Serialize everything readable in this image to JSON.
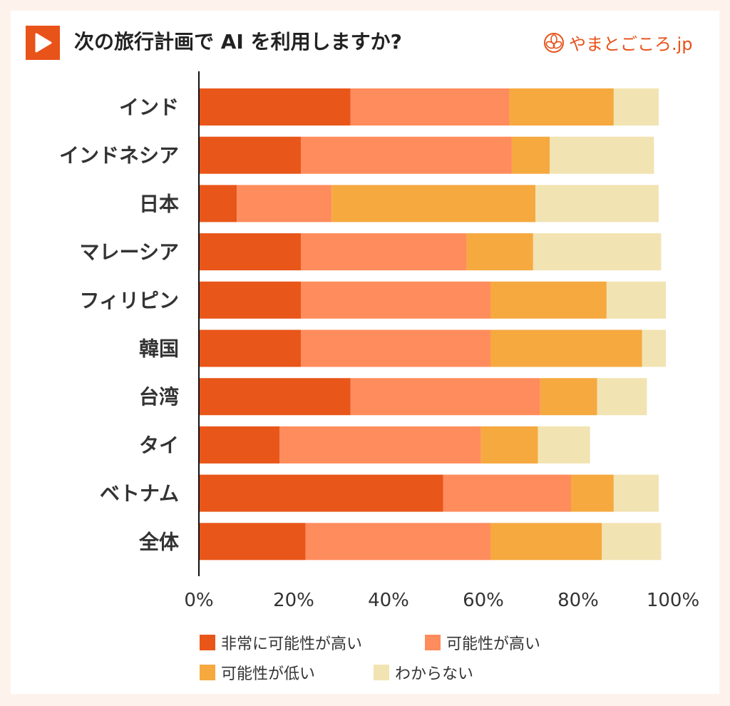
{
  "header": {
    "title": "次の旅行計画で AI を利用しますか?",
    "brand": "やまとごころ.jp"
  },
  "colors": {
    "very_likely": "#e8561a",
    "likely": "#ff8c5c",
    "unlikely": "#f5a93f",
    "unknown": "#f2e3b2"
  },
  "chart_data": {
    "type": "bar",
    "orientation": "horizontal",
    "stacked": true,
    "title": "次の旅行計画で AI を利用しますか?",
    "categories": [
      "インド",
      "インドネシア",
      "日本",
      "マレーシア",
      "フィリピン",
      "韓国",
      "台湾",
      "タイ",
      "ベトナム",
      "全体"
    ],
    "series": [
      {
        "name": "非常に可能性が高い",
        "values": [
          32,
          21.5,
          8,
          21.5,
          21.5,
          21.5,
          32,
          17,
          51.5,
          22.5
        ]
      },
      {
        "name": "可能性が高い",
        "values": [
          33.5,
          44.5,
          20,
          35,
          40,
          40,
          40,
          42.5,
          27,
          39
        ]
      },
      {
        "name": "可能性が低い",
        "values": [
          22,
          8,
          43,
          14,
          24.5,
          32,
          12,
          12,
          9,
          23.5
        ]
      },
      {
        "name": "わからない",
        "values": [
          9.5,
          22,
          26,
          27,
          12.5,
          5,
          10.5,
          11,
          9.5,
          12.5
        ]
      }
    ],
    "xlim": [
      0,
      100
    ],
    "xticks": [
      "0%",
      "20%",
      "40%",
      "60%",
      "80%",
      "100%"
    ],
    "xlabel": "",
    "ylabel": ""
  }
}
